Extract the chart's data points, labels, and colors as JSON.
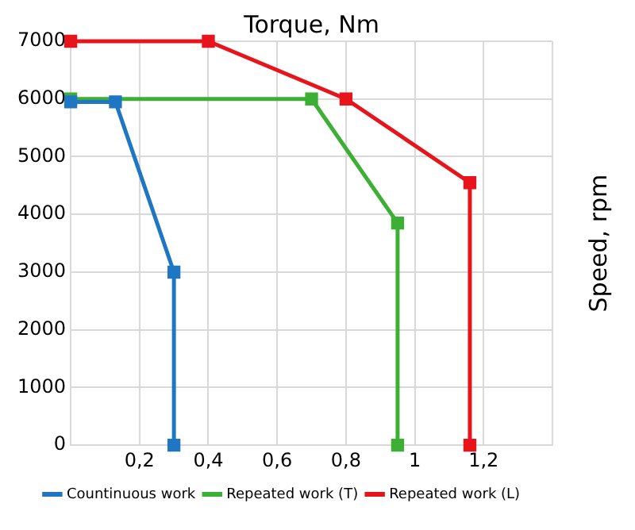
{
  "chart_data": {
    "type": "line",
    "xlabel": "Torque, Nm",
    "ylabel": "Speed, rpm",
    "xlim": [
      0,
      1.4
    ],
    "xticks": [
      {
        "value": 0.2,
        "label": "0,2"
      },
      {
        "value": 0.4,
        "label": "0,4"
      },
      {
        "value": 0.6,
        "label": "0,6"
      },
      {
        "value": 0.8,
        "label": "0,8"
      },
      1,
      {
        "value": 1.2,
        "label": "1,2"
      },
      {
        "value": 1.4,
        "label": null
      }
    ],
    "ylim": [
      0,
      7000
    ],
    "yticks": [
      0,
      1000,
      2000,
      3000,
      4000,
      5000,
      6000,
      7000
    ],
    "grid": true,
    "legend": "bottom",
    "marker": "square",
    "line_style": "solid",
    "series": [
      {
        "name": "Countinuous work",
        "color": "#1f77c4",
        "x": [
          0,
          0.13,
          0.3,
          0.3
        ],
        "values": [
          5950,
          5950,
          3000,
          0
        ]
      },
      {
        "name": "Repeated work (T)",
        "color": "#3cb034",
        "x": [
          0,
          0.7,
          0.95,
          0.95
        ],
        "values": [
          6000,
          6000,
          3850,
          0
        ]
      },
      {
        "name": "Repeated work (L)",
        "color": "#e8141c",
        "x": [
          0,
          0.4,
          0.8,
          1.16,
          1.16
        ],
        "values": [
          7000,
          7000,
          6000,
          4550,
          0
        ]
      }
    ]
  }
}
